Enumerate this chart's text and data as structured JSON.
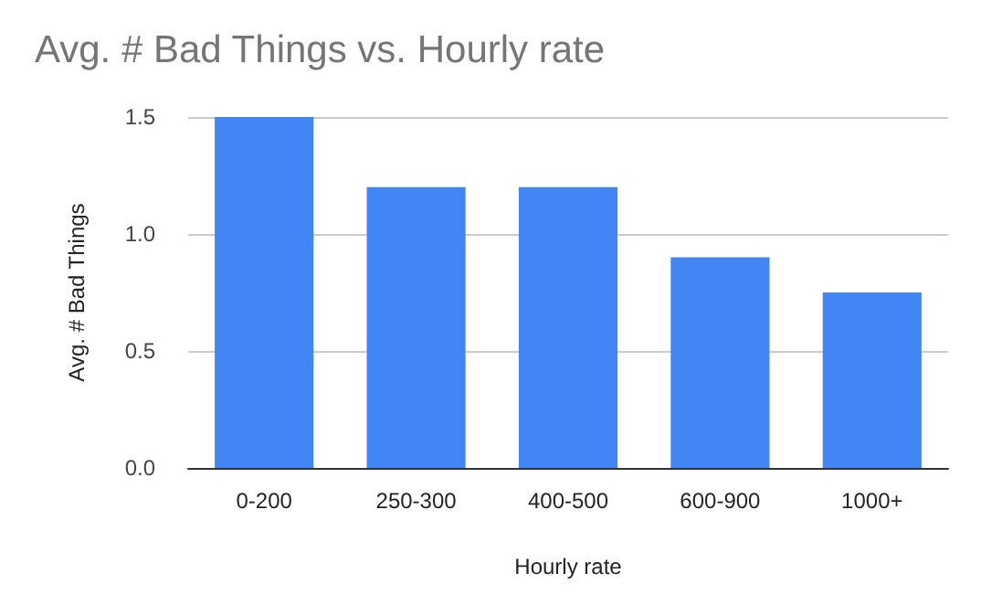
{
  "chart_data": {
    "type": "bar",
    "title": "Avg. # Bad Things vs. Hourly rate",
    "xlabel": "Hourly rate",
    "ylabel": "Avg. # Bad Things",
    "categories": [
      "0-200",
      "250-300",
      "400-500",
      "600-900",
      "1000+"
    ],
    "values": [
      1.5,
      1.2,
      1.2,
      0.9,
      0.75
    ],
    "color": "#4285f4",
    "ylim": [
      0,
      1.5
    ],
    "yticks": [
      {
        "value": 0,
        "label": "0.0"
      },
      0.5,
      {
        "value": 1,
        "label": "1.0"
      },
      1.5
    ],
    "grid": "y"
  }
}
